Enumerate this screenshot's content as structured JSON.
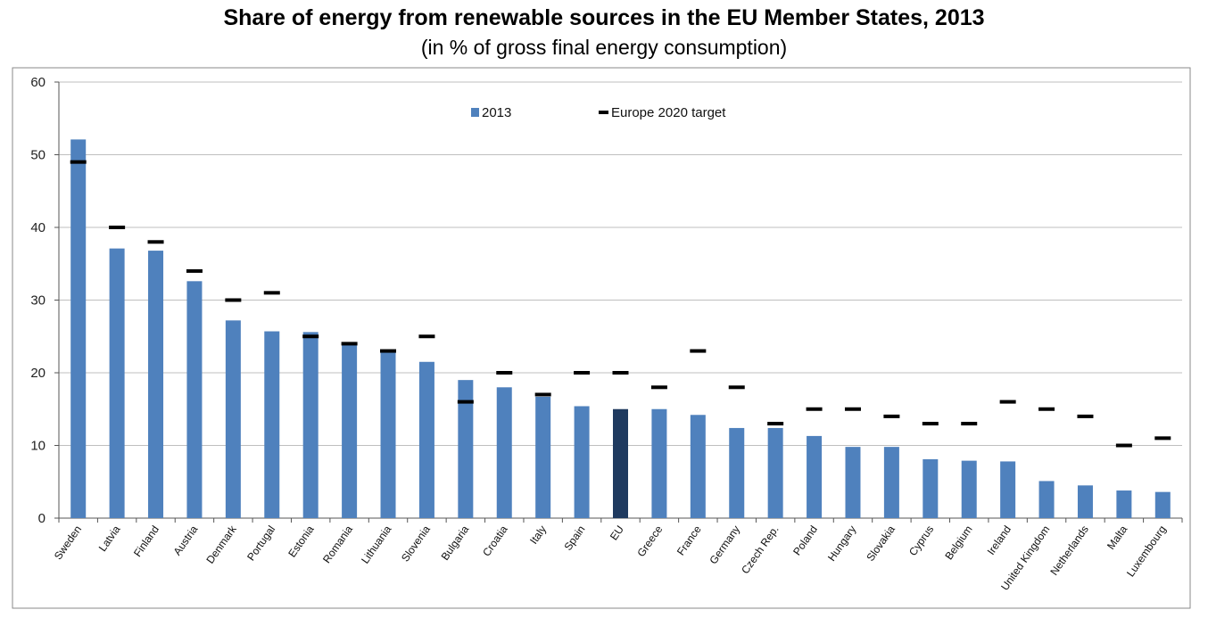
{
  "chart_data": {
    "type": "bar",
    "title": "Share of energy from renewable sources in the EU Member States, 2013",
    "subtitle": "(in % of gross final energy consumption)",
    "xlabel": "",
    "ylabel": "",
    "ylim": [
      0,
      60
    ],
    "yticks": [
      0,
      10,
      20,
      30,
      40,
      50,
      60
    ],
    "grid": true,
    "legend_position": "top",
    "categories": [
      "Sweden",
      "Latvia",
      "Finland",
      "Austria",
      "Denmark",
      "Portugal",
      "Estonia",
      "Romania",
      "Lithuania",
      "Slovenia",
      "Bulgaria",
      "Croatia",
      "Italy",
      "Spain",
      "EU",
      "Greece",
      "France",
      "Germany",
      "Czech Rep.",
      "Poland",
      "Hungary",
      "Slovakia",
      "Cyprus",
      "Belgium",
      "Ireland",
      "United Kingdom",
      "Netherlands",
      "Malta",
      "Luxembourg"
    ],
    "series": [
      {
        "name": "2013",
        "kind": "bar",
        "color": "#4f81bd",
        "highlight": {
          "category": "EU",
          "color": "#1f3a5f"
        },
        "values": [
          52.1,
          37.1,
          36.8,
          32.6,
          27.2,
          25.7,
          25.6,
          23.9,
          23.0,
          21.5,
          19.0,
          18.0,
          16.7,
          15.4,
          15.0,
          15.0,
          14.2,
          12.4,
          12.4,
          11.3,
          9.8,
          9.8,
          8.1,
          7.9,
          7.8,
          5.1,
          4.5,
          3.8,
          3.6
        ]
      },
      {
        "name": "Europe 2020 target",
        "kind": "marker",
        "color": "#000000",
        "values": [
          49,
          40,
          38,
          34,
          30,
          31,
          25,
          24,
          23,
          25,
          16,
          20,
          17,
          20,
          20,
          18,
          23,
          18,
          13,
          15,
          15,
          14,
          13,
          13,
          16,
          15,
          14,
          10,
          11
        ]
      }
    ]
  }
}
